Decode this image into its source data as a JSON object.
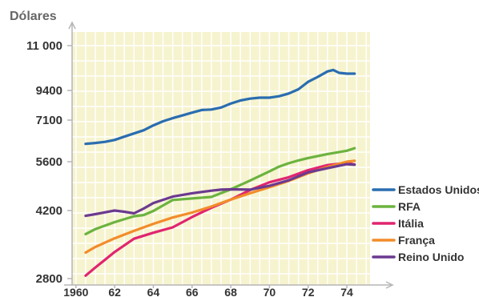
{
  "chart_data": {
    "type": "line",
    "ylabel": "Dólares",
    "xlabel": "",
    "y_scale": "log",
    "y_ticks": [
      {
        "value": 2800,
        "label": "2800"
      },
      {
        "value": 4200,
        "label": "4200"
      },
      {
        "value": 5600,
        "label": "5600"
      },
      {
        "value": 7100,
        "label": "7100"
      },
      {
        "value": 9400,
        "label": "9400"
      },
      {
        "value": 11000,
        "label": "11 000"
      }
    ],
    "x_ticks": [
      {
        "value": 1960,
        "label": "1960"
      },
      {
        "value": 1962,
        "label": "62"
      },
      {
        "value": 1964,
        "label": "64"
      },
      {
        "value": 1966,
        "label": "66"
      },
      {
        "value": 1968,
        "label": "68"
      },
      {
        "value": 1970,
        "label": "70"
      },
      {
        "value": 1972,
        "label": "72"
      },
      {
        "value": 1974,
        "label": "74"
      }
    ],
    "xlim": [
      1959.8,
      1975.2
    ],
    "ylim": [
      2800,
      12000
    ],
    "grid": true,
    "legend_position": "right",
    "series": [
      {
        "name": "Estados Unidos",
        "color": "#2a6db0",
        "x": [
          1960.5,
          1961,
          1961.5,
          1962,
          1962.5,
          1963,
          1963.5,
          1964,
          1964.5,
          1965,
          1965.5,
          1966,
          1966.5,
          1967,
          1967.5,
          1968,
          1968.5,
          1969,
          1969.5,
          1970,
          1970.5,
          1971,
          1971.5,
          1972,
          1972.5,
          1973,
          1973.3,
          1973.6,
          1974,
          1974.4
        ],
        "values": [
          6200,
          6230,
          6270,
          6340,
          6460,
          6580,
          6700,
          6890,
          7050,
          7230,
          7420,
          7620,
          7810,
          7850,
          8000,
          8300,
          8550,
          8700,
          8780,
          8780,
          8900,
          9130,
          9440,
          9690,
          9860,
          10050,
          10100,
          10000,
          9970,
          9970
        ]
      },
      {
        "name": "RFA",
        "color": "#6cb33f",
        "x": [
          1960.5,
          1961,
          1962,
          1963,
          1963.5,
          1964,
          1965,
          1966,
          1967,
          1968,
          1969,
          1970,
          1970.5,
          1971,
          1971.5,
          1972,
          1973,
          1974,
          1974.4
        ],
        "values": [
          3650,
          3760,
          3920,
          4060,
          4090,
          4190,
          4470,
          4510,
          4550,
          4760,
          5010,
          5290,
          5440,
          5550,
          5640,
          5720,
          5850,
          5960,
          6050
        ]
      },
      {
        "name": "Itália",
        "color": "#e0256f",
        "x": [
          1960.5,
          1961,
          1962,
          1963,
          1964,
          1965,
          1966,
          1967,
          1968,
          1969,
          1970,
          1971,
          1972,
          1973,
          1974,
          1974.4
        ],
        "values": [
          2850,
          2990,
          3280,
          3550,
          3680,
          3800,
          4040,
          4270,
          4480,
          4740,
          4960,
          5110,
          5330,
          5490,
          5560,
          5510
        ]
      },
      {
        "name": "França",
        "color": "#f28c2a",
        "x": [
          1960.5,
          1961,
          1962,
          1963,
          1964,
          1965,
          1966,
          1967,
          1968,
          1969,
          1970,
          1971,
          1972,
          1973,
          1974,
          1974.4
        ],
        "values": [
          3270,
          3380,
          3560,
          3720,
          3880,
          4030,
          4150,
          4300,
          4480,
          4650,
          4820,
          5000,
          5230,
          5430,
          5600,
          5630
        ]
      },
      {
        "name": "Reino Unido",
        "color": "#6b3a8f",
        "x": [
          1960.5,
          1961,
          1962,
          1962.5,
          1963,
          1963.5,
          1964,
          1965,
          1966,
          1967,
          1967.5,
          1968,
          1969,
          1970,
          1971,
          1972,
          1973,
          1974,
          1974.4
        ],
        "values": [
          4070,
          4110,
          4200,
          4170,
          4130,
          4250,
          4390,
          4560,
          4650,
          4720,
          4750,
          4760,
          4750,
          4860,
          5020,
          5260,
          5390,
          5520,
          5500
        ]
      }
    ]
  }
}
